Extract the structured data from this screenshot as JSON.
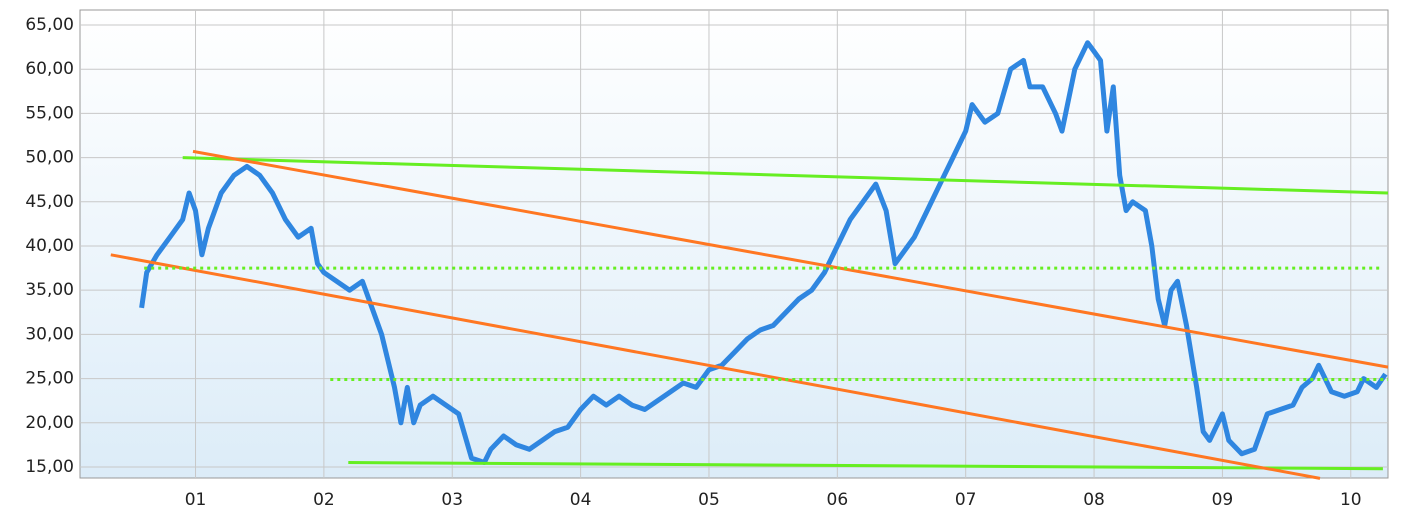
{
  "chart_data": {
    "type": "line",
    "xlim": [
      2000.1,
      2010.29
    ],
    "ylim": [
      13.75,
      66.7
    ],
    "xticks": [
      {
        "value": 2001,
        "label": "01"
      },
      {
        "value": 2002,
        "label": "02"
      },
      {
        "value": 2003,
        "label": "03"
      },
      {
        "value": 2004,
        "label": "04"
      },
      {
        "value": 2005,
        "label": "05"
      },
      {
        "value": 2006,
        "label": "06"
      },
      {
        "value": 2007,
        "label": "07"
      },
      {
        "value": 2008,
        "label": "08"
      },
      {
        "value": 2009,
        "label": "09"
      },
      {
        "value": 2010,
        "label": "10"
      }
    ],
    "yticks": [
      {
        "value": 15,
        "label": "15,00"
      },
      {
        "value": 20,
        "label": "20,00"
      },
      {
        "value": 25,
        "label": "25,00"
      },
      {
        "value": 30,
        "label": "30,00"
      },
      {
        "value": 35,
        "label": "35,00"
      },
      {
        "value": 40,
        "label": "40,00"
      },
      {
        "value": 45,
        "label": "45,00"
      },
      {
        "value": 50,
        "label": "50,00"
      },
      {
        "value": 55,
        "label": "55,00"
      },
      {
        "value": 60,
        "label": "60,00"
      },
      {
        "value": 65,
        "label": "65,00"
      }
    ],
    "grid": true,
    "series": [
      {
        "color": "#2f86e0",
        "width": 5,
        "x": [
          2000.58,
          2000.62,
          2000.7,
          2000.8,
          2000.9,
          2000.95,
          2001.0,
          2001.05,
          2001.1,
          2001.2,
          2001.3,
          2001.4,
          2001.5,
          2001.6,
          2001.7,
          2001.8,
          2001.9,
          2001.95,
          2002.0,
          2002.1,
          2002.2,
          2002.3,
          2002.35,
          2002.45,
          2002.55,
          2002.6,
          2002.65,
          2002.7,
          2002.75,
          2002.85,
          2002.95,
          2003.05,
          2003.15,
          2003.25,
          2003.3,
          2003.4,
          2003.5,
          2003.6,
          2003.7,
          2003.8,
          2003.9,
          2004.0,
          2004.1,
          2004.2,
          2004.3,
          2004.4,
          2004.5,
          2004.6,
          2004.7,
          2004.8,
          2004.9,
          2005.0,
          2005.1,
          2005.2,
          2005.3,
          2005.4,
          2005.5,
          2005.6,
          2005.7,
          2005.8,
          2005.9,
          2006.0,
          2006.1,
          2006.2,
          2006.3,
          2006.38,
          2006.45,
          2006.55,
          2006.6,
          2006.7,
          2006.8,
          2006.9,
          2007.0,
          2007.05,
          2007.15,
          2007.25,
          2007.35,
          2007.45,
          2007.5,
          2007.6,
          2007.7,
          2007.75,
          2007.85,
          2007.95,
          2008.0,
          2008.05,
          2008.1,
          2008.15,
          2008.2,
          2008.25,
          2008.3,
          2008.4,
          2008.45,
          2008.5,
          2008.55,
          2008.6,
          2008.65,
          2008.72,
          2008.8,
          2008.85,
          2008.9,
          2009.0,
          2009.05,
          2009.15,
          2009.25,
          2009.35,
          2009.45,
          2009.55,
          2009.62,
          2009.7,
          2009.75,
          2009.85,
          2009.95,
          2010.05,
          2010.1,
          2010.2,
          2010.27
        ],
        "values": [
          33,
          37,
          39,
          41,
          43,
          46,
          44,
          39,
          42,
          46,
          48,
          49,
          48,
          46,
          43,
          41,
          42,
          38,
          37,
          36,
          35,
          36,
          34,
          30,
          24,
          20,
          24,
          20,
          22,
          23,
          22,
          21,
          16,
          15.5,
          17,
          18.5,
          17.5,
          17,
          18,
          19,
          19.5,
          21.5,
          23,
          22,
          23,
          22,
          21.5,
          22.5,
          23.5,
          24.5,
          24,
          26,
          26.5,
          28,
          29.5,
          30.5,
          31,
          32.5,
          34,
          35,
          37,
          40,
          43,
          45,
          47,
          44,
          38,
          40,
          41,
          44,
          47,
          50,
          53,
          56,
          54,
          55,
          60,
          61,
          58,
          58,
          55,
          53,
          60,
          63,
          62,
          61,
          53,
          58,
          48,
          44,
          45,
          44,
          40,
          34,
          31,
          35,
          36,
          31,
          24,
          19,
          18,
          21,
          18,
          16.5,
          17,
          21,
          21.5,
          22,
          24,
          25,
          26.5,
          23.5,
          23,
          23.5,
          25,
          24,
          25.5
        ]
      },
      {
        "color": "#66ee22",
        "width": 3,
        "x": [
          2000.9,
          2010.29
        ],
        "values": [
          50,
          46
        ]
      },
      {
        "color": "#66ee22",
        "width": 3,
        "x": [
          2002.19,
          2010.25
        ],
        "values": [
          15.5,
          14.8
        ]
      },
      {
        "color": "#ff7722",
        "width": 3,
        "x": [
          2000.98,
          2010.29
        ],
        "values": [
          50.7,
          26.3
        ]
      },
      {
        "color": "#ff7722",
        "width": 3,
        "x": [
          2000.34,
          2009.76
        ],
        "values": [
          39,
          13.7
        ]
      },
      {
        "color": "#66ee22",
        "width": 3,
        "dash": true,
        "x": [
          2000.6,
          2010.25
        ],
        "values": [
          37.5,
          37.5
        ]
      },
      {
        "color": "#66ee22",
        "width": 3,
        "dash": true,
        "x": [
          2002.05,
          2010.29
        ],
        "values": [
          24.9,
          24.9
        ]
      }
    ]
  }
}
